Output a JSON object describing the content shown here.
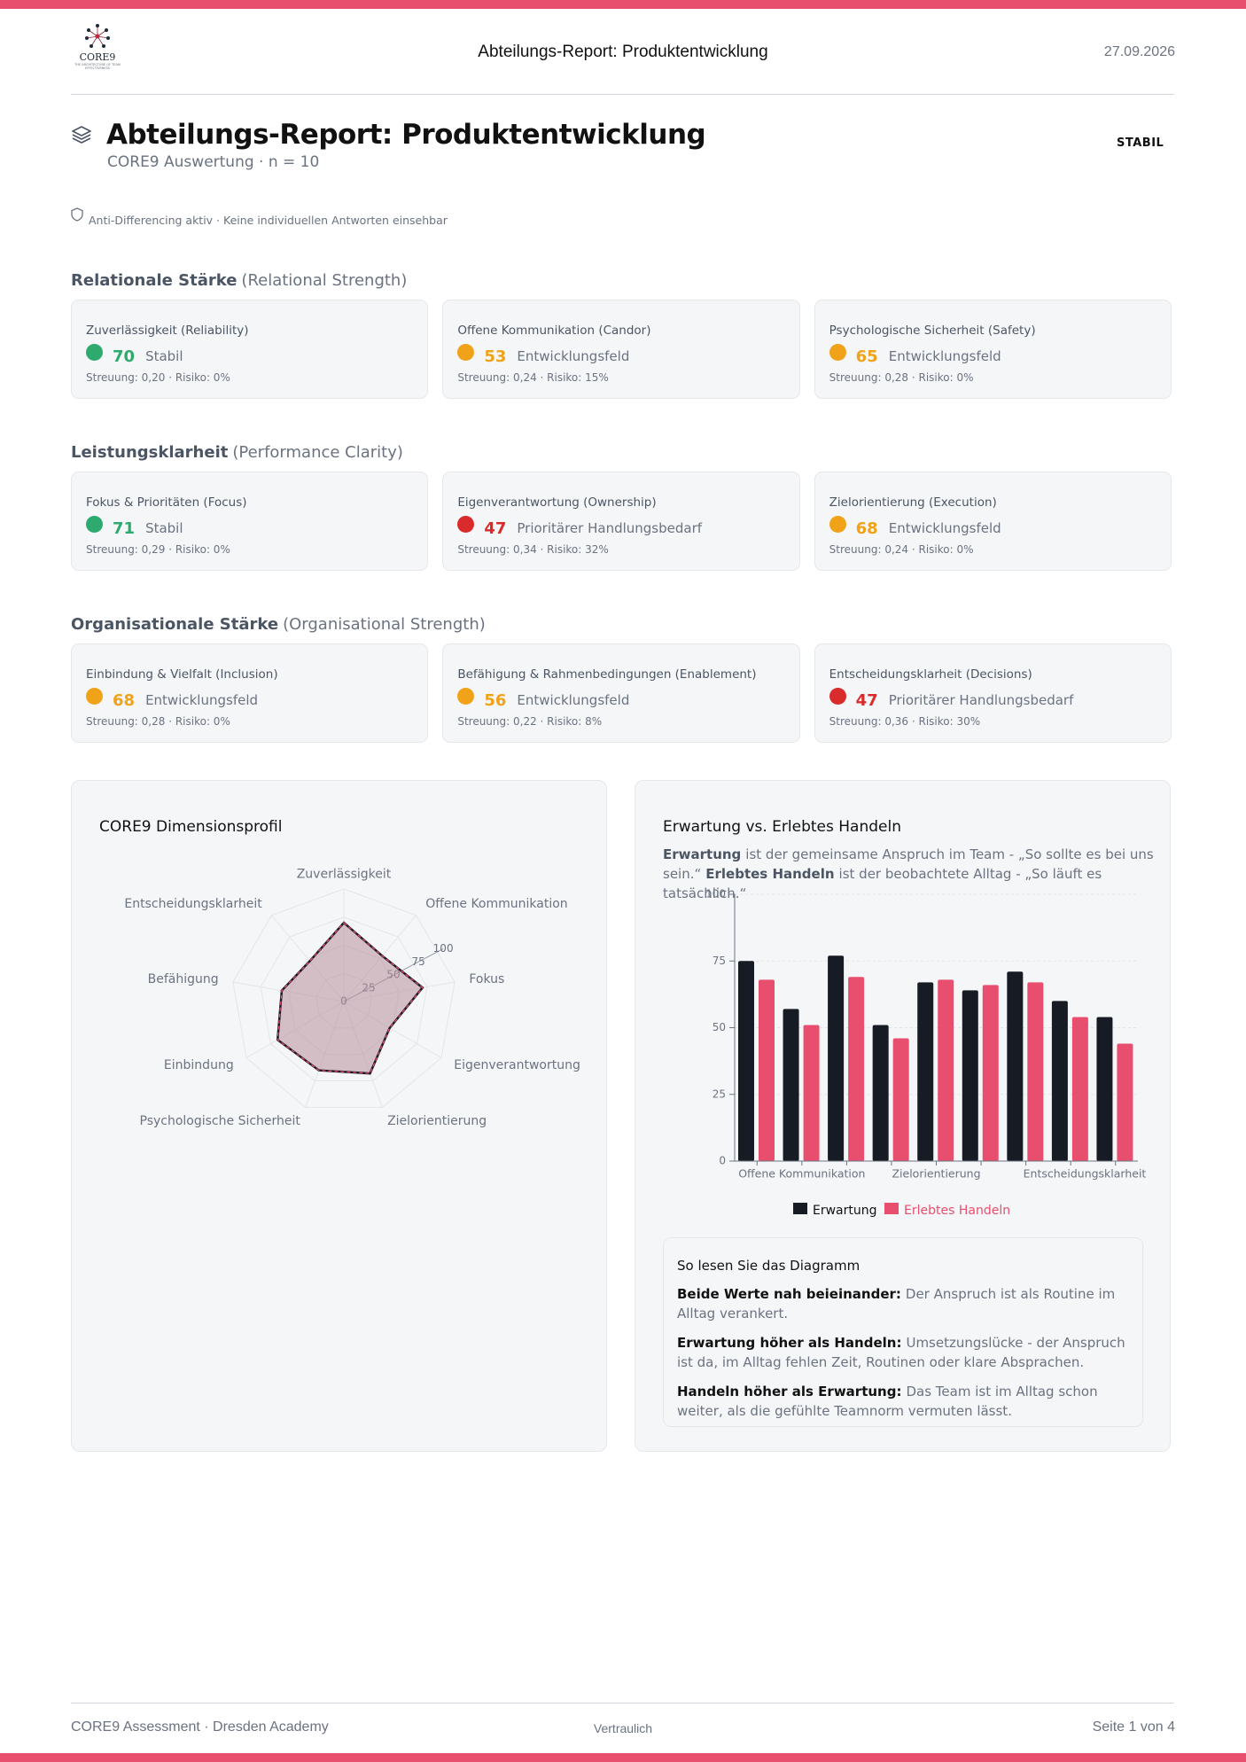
{
  "header": {
    "logo_text": "CORE9",
    "logo_subtitle": "THE ARCHITECTURE OF TEAM EFFECTIVENESS",
    "title": "Abteilungs-Report: Produktentwicklung",
    "date": "27.09.2026"
  },
  "report": {
    "title": "Abteilungs-Report: Produktentwicklung",
    "subtitle": "CORE9 Auswertung · n = 10",
    "status": "STABIL",
    "notice": "Anti-Differencing aktiv · Keine individuellen Antworten einsehbar"
  },
  "sections": [
    {
      "title": "Relationale Stärke",
      "subtitle": "(Relational Strength)",
      "cards": [
        {
          "name": "Zuverlässigkeit (Reliability)",
          "score": 70,
          "status": "Stabil",
          "color": "#2eaa6e",
          "meta": "Streuung: 0,20 · Risiko: 0%"
        },
        {
          "name": "Offene Kommunikation (Candor)",
          "score": 53,
          "status": "Entwicklungsfeld",
          "color": "#f0a318",
          "meta": "Streuung: 0,24 · Risiko: 15%"
        },
        {
          "name": "Psychologische Sicherheit (Safety)",
          "score": 65,
          "status": "Entwicklungsfeld",
          "color": "#f0a318",
          "meta": "Streuung: 0,28 · Risiko: 0%"
        }
      ]
    },
    {
      "title": "Leistungsklarheit",
      "subtitle": "(Performance Clarity)",
      "cards": [
        {
          "name": "Fokus & Prioritäten (Focus)",
          "score": 71,
          "status": "Stabil",
          "color": "#2eaa6e",
          "meta": "Streuung: 0,29 · Risiko: 0%"
        },
        {
          "name": "Eigenverantwortung (Ownership)",
          "score": 47,
          "status": "Prioritärer Handlungsbedarf",
          "color": "#d92b2b",
          "meta": "Streuung: 0,34 · Risiko: 32%"
        },
        {
          "name": "Zielorientierung (Execution)",
          "score": 68,
          "status": "Entwicklungsfeld",
          "color": "#f0a318",
          "meta": "Streuung: 0,24 · Risiko: 0%"
        }
      ]
    },
    {
      "title": "Organisationale Stärke",
      "subtitle": "(Organisational Strength)",
      "cards": [
        {
          "name": "Einbindung & Vielfalt (Inclusion)",
          "score": 68,
          "status": "Entwicklungsfeld",
          "color": "#f0a318",
          "meta": "Streuung: 0,28 · Risiko: 0%"
        },
        {
          "name": "Befähigung & Rahmenbedingungen (Enablement)",
          "score": 56,
          "status": "Entwicklungsfeld",
          "color": "#f0a318",
          "meta": "Streuung: 0,22 · Risiko: 8%"
        },
        {
          "name": "Entscheidungsklarheit (Decisions)",
          "score": 47,
          "status": "Prioritärer Handlungsbedarf",
          "color": "#d92b2b",
          "meta": "Streuung: 0,36 · Risiko: 30%"
        }
      ]
    }
  ],
  "chart_data": [
    {
      "type": "radar",
      "title": "CORE9 Dimensionsprofil",
      "categories": [
        "Zuverlässigkeit",
        "Offene Kommunikation",
        "Fokus",
        "Eigenverantwortung",
        "Zielorientierung",
        "Psychologische Sicherheit",
        "Einbindung",
        "Befähigung",
        "Entscheidungsklarheit"
      ],
      "values": [
        70,
        53,
        71,
        47,
        68,
        65,
        68,
        56,
        47
      ],
      "color": "#1f1a24",
      "fill": "#b88f9c",
      "ylim": [
        0,
        100
      ],
      "yticks": [
        0,
        25,
        50,
        75,
        100
      ],
      "grid": true
    },
    {
      "type": "bar",
      "title": "Erwartung vs. Erlebtes Handeln",
      "description": [
        {
          "bold": "Erwartung",
          "text": "ist der gemeinsame Anspruch im Team - „So sollte es bei uns sein.“"
        },
        {
          "bold": "Erlebtes Handeln",
          "text": "ist der beobachtete Alltag - „So läuft es tatsächlich.“"
        }
      ],
      "categories": [
        null,
        "Offene Kommunikation",
        null,
        null,
        "Zielorientierung",
        null,
        null,
        null,
        "Entscheidungsklarheit"
      ],
      "series": [
        {
          "name": "Erwartung",
          "color": "#171c24",
          "values": [
            75,
            57,
            77,
            51,
            67,
            64,
            71,
            60,
            54
          ]
        },
        {
          "name": "Erlebtes Handeln",
          "color": "#e84f6f",
          "values": [
            68,
            51,
            69,
            46,
            68,
            66,
            67,
            54,
            44
          ]
        }
      ],
      "ylim": [
        0,
        100
      ],
      "yticks": [
        0,
        25,
        50,
        75,
        100
      ],
      "grid": true,
      "legend": "bottom"
    }
  ],
  "guide": {
    "title": "So lesen Sie das Diagramm",
    "items": [
      {
        "bold": "Beide Werte nah beieinander:",
        "text": "Der Anspruch ist als Routine im Alltag verankert."
      },
      {
        "bold": "Erwartung höher als Handeln:",
        "text": "Umsetzungslücke - der Anspruch ist da, im Alltag fehlen Zeit, Routinen oder klare Absprachen."
      },
      {
        "bold": "Handeln höher als Erwartung:",
        "text": "Das Team ist im Alltag schon weiter, als die gefühlte Teamnorm vermuten lässt."
      }
    ]
  },
  "footer": {
    "left": "CORE9 Assessment · Dresden Academy",
    "center": "Vertraulich",
    "right": "Seite 1 von 4"
  }
}
